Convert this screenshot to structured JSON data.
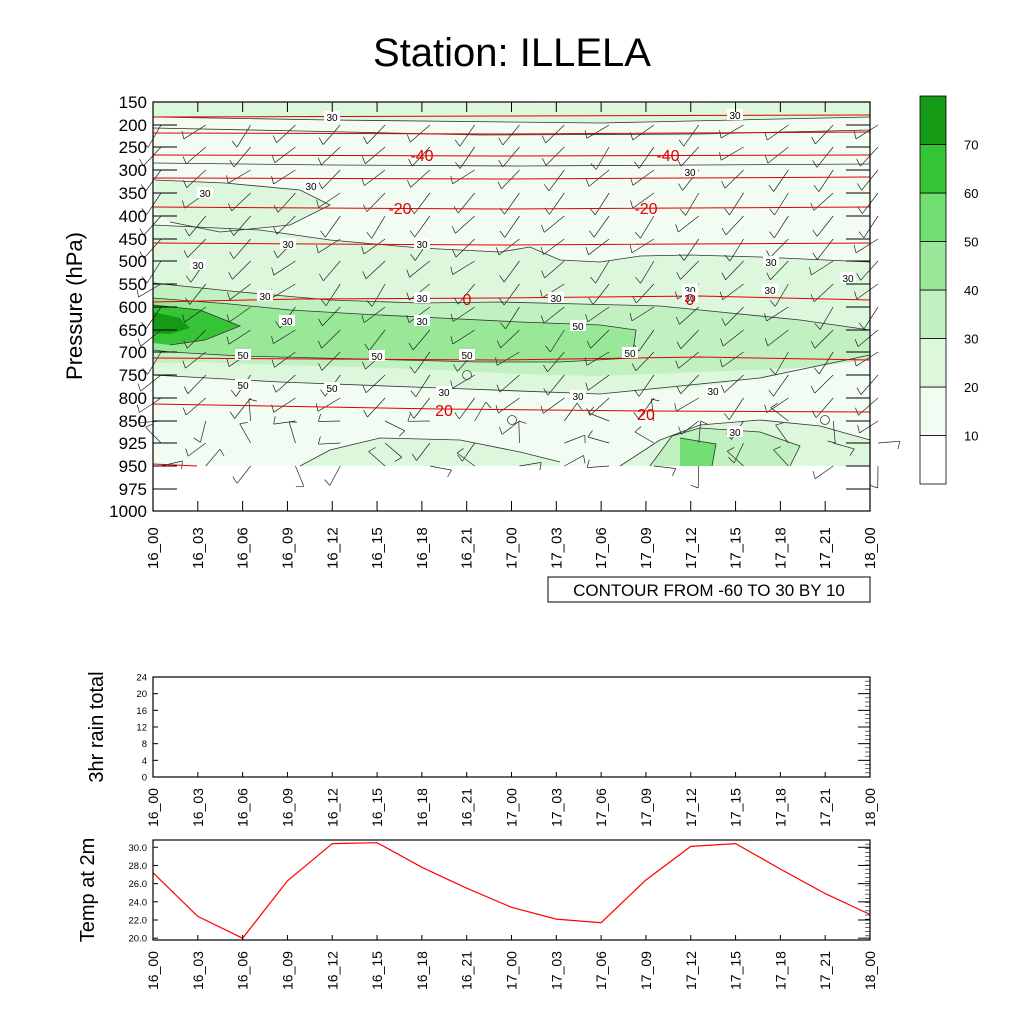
{
  "title": "Station: ILLELA",
  "chart_data": [
    {
      "type": "heatmap",
      "name": "pressure-time-cross-section",
      "ylabel": "Pressure (hPa)",
      "y_ticks": [
        "150",
        "200",
        "250",
        "300",
        "350",
        "400",
        "450",
        "500",
        "550",
        "600",
        "650",
        "700",
        "750",
        "800",
        "850",
        "925",
        "950",
        "975",
        "1000"
      ],
      "x_ticks": [
        "16_00",
        "16_03",
        "16_06",
        "16_09",
        "16_12",
        "16_15",
        "16_18",
        "16_21",
        "17_00",
        "17_03",
        "17_06",
        "17_09",
        "17_12",
        "17_15",
        "17_18",
        "17_21",
        "18_00"
      ],
      "contour_info": "CONTOUR FROM -60 TO 30 BY 10",
      "colorbar_levels": [
        "10",
        "20",
        "30",
        "40",
        "50",
        "60",
        "70"
      ],
      "colorbar_colors": [
        "#ffffff",
        "#f2fcf2",
        "#dcf7dc",
        "#c1f0c1",
        "#98e898",
        "#72df72",
        "#35c435",
        "#159a15"
      ],
      "green_contour_labels": [
        "30",
        "30",
        "30",
        "30",
        "30",
        "30",
        "30",
        "30",
        "30",
        "30",
        "30",
        "30",
        "30",
        "30",
        "30",
        "30",
        "30",
        "50",
        "50",
        "50",
        "50",
        "50",
        "50",
        "50",
        "30",
        "30",
        "30",
        "30",
        "30",
        "30"
      ],
      "temp_contour_labels": [
        "-40",
        "-40",
        "-20",
        "-20",
        "0",
        "0",
        "20",
        "20"
      ],
      "station_markers": 3
    },
    {
      "type": "line",
      "name": "rain",
      "ylabel": "3hr rain total",
      "x_ticks": [
        "16_00",
        "16_03",
        "16_06",
        "16_09",
        "16_12",
        "16_15",
        "16_18",
        "16_21",
        "17_00",
        "17_03",
        "17_06",
        "17_09",
        "17_12",
        "17_15",
        "17_18",
        "17_21",
        "18_00"
      ],
      "y_ticks": [
        "0",
        "4",
        "8",
        "12",
        "16",
        "20",
        "24"
      ],
      "ylim": [
        0,
        24
      ],
      "values": []
    },
    {
      "type": "line",
      "name": "temperature",
      "ylabel": "Temp at 2m",
      "x_ticks": [
        "16_00",
        "16_03",
        "16_06",
        "16_09",
        "16_12",
        "16_15",
        "16_18",
        "16_21",
        "17_00",
        "17_03",
        "17_06",
        "17_09",
        "17_12",
        "17_15",
        "17_18",
        "17_21",
        "18_00"
      ],
      "y_ticks": [
        "20.0",
        "22.0",
        "24.0",
        "26.0",
        "28.0",
        "30.0"
      ],
      "ylim": [
        19.8,
        30.8
      ],
      "values": [
        27.2,
        22.4,
        20.0,
        26.3,
        30.4,
        30.5,
        27.8,
        25.5,
        23.4,
        22.1,
        21.7,
        26.4,
        30.1,
        30.4,
        27.6,
        24.9,
        22.6
      ],
      "color": "#ff0000"
    }
  ]
}
